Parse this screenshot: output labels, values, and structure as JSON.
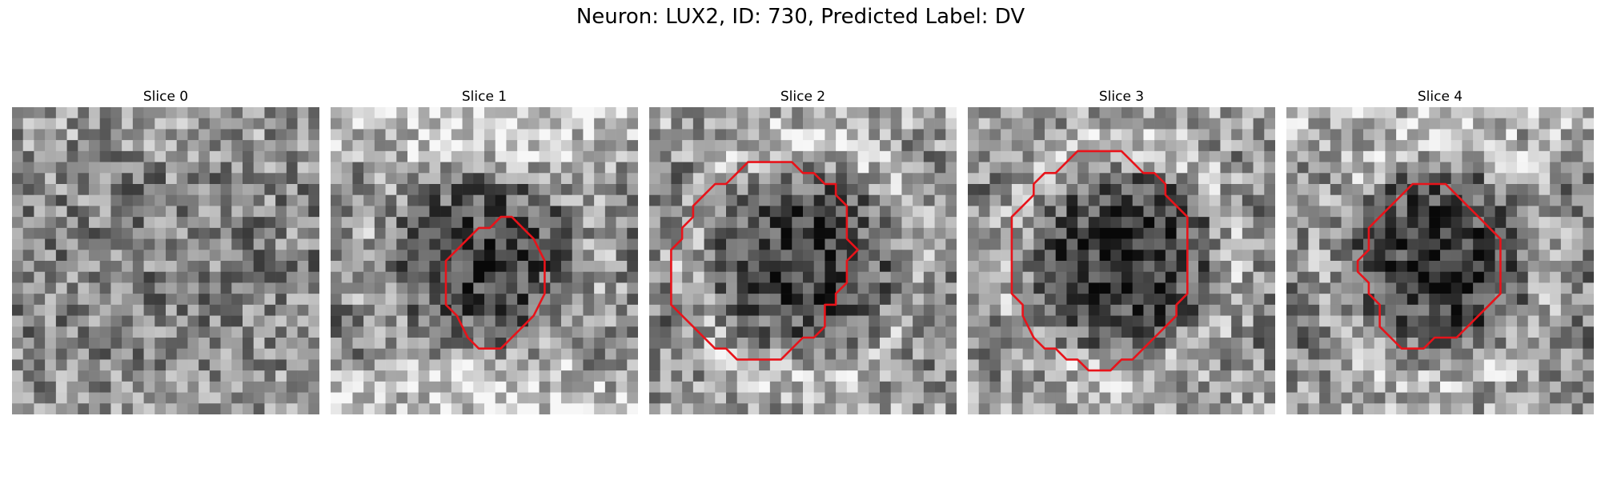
{
  "figure": {
    "title": "Neuron: LUX2, ID: 730, Predicted Label: DV"
  },
  "panels": [
    {
      "title": "Slice 0",
      "seed": 11,
      "center_dark": 0.0,
      "ring_bright": 0.05,
      "top_bright": 0.15,
      "bottom_bright": 0.15,
      "contour": []
    },
    {
      "title": "Slice 1",
      "seed": 23,
      "center_dark": 0.3,
      "ring_bright": 0.35,
      "top_bright": 0.4,
      "bottom_bright": 0.45,
      "contour": [
        [
          15.5,
          10
        ],
        [
          16.5,
          10
        ],
        [
          17.5,
          11
        ],
        [
          18.5,
          12
        ],
        [
          19.5,
          14
        ],
        [
          19.5,
          17
        ],
        [
          18.5,
          19
        ],
        [
          17.5,
          20
        ],
        [
          16.5,
          21
        ],
        [
          15.5,
          22
        ],
        [
          14.5,
          22
        ],
        [
          13.5,
          22
        ],
        [
          12.5,
          21
        ],
        [
          11.5,
          19
        ],
        [
          10.5,
          18
        ],
        [
          10.5,
          16
        ],
        [
          10.5,
          14
        ],
        [
          11.5,
          13
        ],
        [
          12.5,
          12
        ],
        [
          13.5,
          11
        ],
        [
          14.5,
          11
        ]
      ]
    },
    {
      "title": "Slice 2",
      "seed": 37,
      "center_dark": 0.35,
      "ring_bright": 0.4,
      "top_bright": 0.2,
      "bottom_bright": 0.2,
      "contour": [
        [
          10,
          5
        ],
        [
          13,
          5
        ],
        [
          14,
          6
        ],
        [
          15,
          6
        ],
        [
          16,
          7
        ],
        [
          17,
          7
        ],
        [
          17,
          8
        ],
        [
          18,
          9
        ],
        [
          18,
          12
        ],
        [
          19,
          13
        ],
        [
          18,
          14
        ],
        [
          18,
          16
        ],
        [
          17,
          17
        ],
        [
          17,
          18
        ],
        [
          16,
          18
        ],
        [
          16,
          20
        ],
        [
          15,
          21
        ],
        [
          14,
          21
        ],
        [
          13,
          22
        ],
        [
          12,
          23
        ],
        [
          8,
          23
        ],
        [
          7,
          22
        ],
        [
          6,
          22
        ],
        [
          5,
          21
        ],
        [
          4,
          20
        ],
        [
          3,
          19
        ],
        [
          2,
          18
        ],
        [
          2,
          13
        ],
        [
          3,
          12
        ],
        [
          3,
          11
        ],
        [
          4,
          10
        ],
        [
          4,
          9
        ],
        [
          5,
          8
        ],
        [
          6,
          7
        ],
        [
          7,
          7
        ],
        [
          8,
          6
        ],
        [
          9,
          5
        ]
      ]
    },
    {
      "title": "Slice 3",
      "seed": 53,
      "center_dark": 0.4,
      "ring_bright": 0.4,
      "top_bright": 0.2,
      "bottom_bright": 0.2,
      "contour": [
        [
          11,
          4
        ],
        [
          14,
          4
        ],
        [
          15,
          5
        ],
        [
          16,
          6
        ],
        [
          17,
          6
        ],
        [
          18,
          7
        ],
        [
          18,
          8
        ],
        [
          19,
          9
        ],
        [
          20,
          10
        ],
        [
          20,
          17
        ],
        [
          19,
          18
        ],
        [
          19,
          19
        ],
        [
          18,
          20
        ],
        [
          17,
          21
        ],
        [
          16,
          22
        ],
        [
          15,
          23
        ],
        [
          14,
          23
        ],
        [
          13,
          24
        ],
        [
          11,
          24
        ],
        [
          10,
          23
        ],
        [
          9,
          23
        ],
        [
          8,
          22
        ],
        [
          7,
          22
        ],
        [
          6,
          21
        ],
        [
          5,
          19
        ],
        [
          5,
          18
        ],
        [
          4,
          17
        ],
        [
          4,
          10
        ],
        [
          5,
          9
        ],
        [
          6,
          8
        ],
        [
          6,
          7
        ],
        [
          7,
          6
        ],
        [
          8,
          6
        ],
        [
          9,
          5
        ],
        [
          10,
          4
        ]
      ]
    },
    {
      "title": "Slice 4",
      "seed": 71,
      "center_dark": 0.4,
      "ring_bright": 0.35,
      "top_bright": 0.3,
      "bottom_bright": 0.2,
      "contour": [
        [
          11.5,
          7
        ],
        [
          14.5,
          7
        ],
        [
          15.5,
          8
        ],
        [
          16.5,
          9
        ],
        [
          17.5,
          10
        ],
        [
          18.5,
          11
        ],
        [
          19.5,
          12
        ],
        [
          19.5,
          15
        ],
        [
          19.5,
          17
        ],
        [
          18.5,
          18
        ],
        [
          17.5,
          19
        ],
        [
          16.5,
          20
        ],
        [
          15.5,
          21
        ],
        [
          14.5,
          21
        ],
        [
          13.5,
          21
        ],
        [
          12.5,
          22
        ],
        [
          10.5,
          22
        ],
        [
          9.5,
          21
        ],
        [
          8.5,
          20
        ],
        [
          8.5,
          18
        ],
        [
          7.5,
          17
        ],
        [
          7.5,
          16
        ],
        [
          6.5,
          15
        ],
        [
          6.5,
          14
        ],
        [
          7.5,
          13
        ],
        [
          7.5,
          11
        ],
        [
          8.5,
          10
        ],
        [
          9.5,
          9
        ],
        [
          10.5,
          8
        ]
      ]
    }
  ]
}
